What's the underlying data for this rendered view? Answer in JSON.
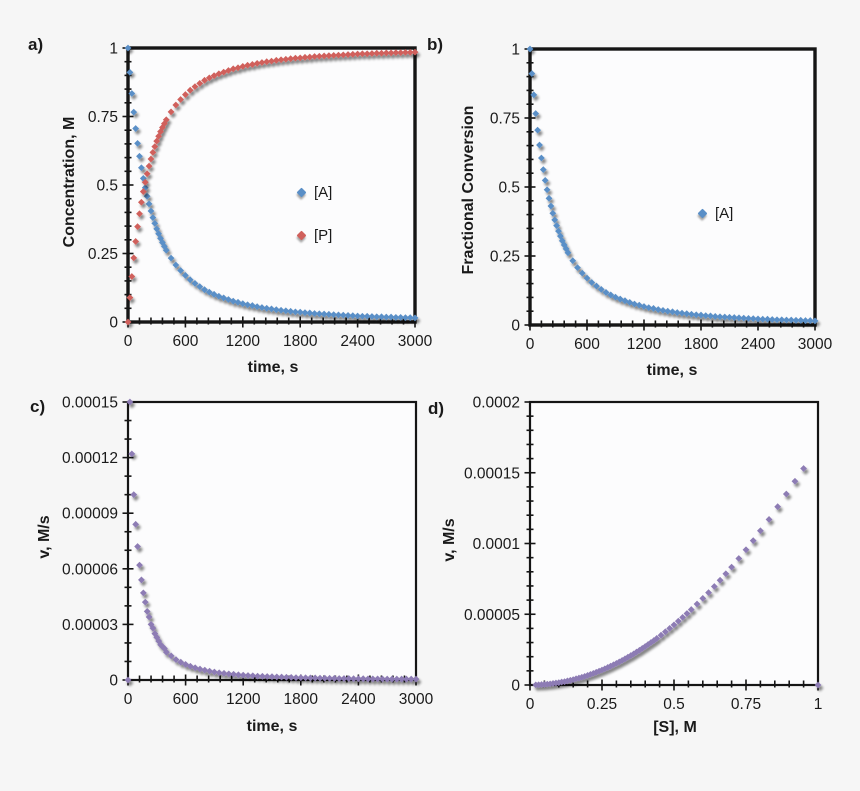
{
  "figure": {
    "bg": "#f6f6f6",
    "plot_bg": "#fcfcfd",
    "border_color": "#151515",
    "text_color": "#1a1a1a"
  },
  "chart_data": [
    {
      "panel": "a",
      "letter": "a)",
      "type": "scatter",
      "xlabel": "time, s",
      "ylabel": "Concentration, M",
      "xlim": [
        0,
        3000
      ],
      "ylim": [
        0,
        1
      ],
      "xticks": [
        0,
        600,
        1200,
        1800,
        2400,
        3000
      ],
      "xtick_labels": [
        "0",
        "600",
        "1200",
        "1800",
        "2400",
        "3000"
      ],
      "yticks": [
        0,
        0.25,
        0.5,
        0.75,
        1
      ],
      "ytick_labels": [
        "0",
        "0.25",
        "0.5",
        "0.75",
        "1"
      ],
      "x_minor_step": 120,
      "y_minor_step": 0.05,
      "grid": false,
      "legend_position": "inside-center-right",
      "border_width": 3.4,
      "series": [
        {
          "name": "[A]",
          "color": "#5a8fc7",
          "marker": "diamond",
          "x": [
            0,
            20,
            40,
            60,
            80,
            100,
            120,
            140,
            160,
            180,
            200,
            220,
            240,
            260,
            280,
            300,
            320,
            340,
            360,
            380,
            400,
            450,
            500,
            550,
            600,
            650,
            700,
            750,
            800,
            850,
            900,
            950,
            1000,
            1050,
            1100,
            1150,
            1200,
            1250,
            1300,
            1350,
            1400,
            1450,
            1500,
            1550,
            1600,
            1650,
            1700,
            1750,
            1800,
            1850,
            1900,
            1950,
            2000,
            2050,
            2100,
            2150,
            2200,
            2250,
            2300,
            2350,
            2400,
            2450,
            2500,
            2550,
            2600,
            2650,
            2700,
            2750,
            2800,
            2850,
            2900,
            2950,
            3000
          ],
          "y": [
            1,
            0.911,
            0.834,
            0.766,
            0.706,
            0.652,
            0.605,
            0.563,
            0.524,
            0.49,
            0.459,
            0.431,
            0.405,
            0.381,
            0.36,
            0.34,
            0.322,
            0.305,
            0.29,
            0.276,
            0.262,
            0.233,
            0.208,
            0.188,
            0.17,
            0.154,
            0.141,
            0.129,
            0.118,
            0.109,
            0.101,
            0.094,
            0.088,
            0.082,
            0.076,
            0.072,
            0.067,
            0.063,
            0.06,
            0.056,
            0.053,
            0.05,
            0.048,
            0.045,
            0.043,
            0.041,
            0.039,
            0.037,
            0.036,
            0.034,
            0.033,
            0.031,
            0.03,
            0.029,
            0.028,
            0.027,
            0.026,
            0.025,
            0.024,
            0.023,
            0.022,
            0.021,
            0.021,
            0.02,
            0.019,
            0.019,
            0.018,
            0.018,
            0.017,
            0.017,
            0.016,
            0.016,
            0.015
          ]
        },
        {
          "name": "[P]",
          "color": "#d0605c",
          "marker": "diamond",
          "x": [
            0,
            20,
            40,
            60,
            80,
            100,
            120,
            140,
            160,
            180,
            200,
            220,
            240,
            260,
            280,
            300,
            320,
            340,
            360,
            380,
            400,
            450,
            500,
            550,
            600,
            650,
            700,
            750,
            800,
            850,
            900,
            950,
            1000,
            1050,
            1100,
            1150,
            1200,
            1250,
            1300,
            1350,
            1400,
            1450,
            1500,
            1550,
            1600,
            1650,
            1700,
            1750,
            1800,
            1850,
            1900,
            1950,
            2000,
            2050,
            2100,
            2150,
            2200,
            2250,
            2300,
            2350,
            2400,
            2450,
            2500,
            2550,
            2600,
            2650,
            2700,
            2750,
            2800,
            2850,
            2900,
            2950,
            3000
          ],
          "y": [
            0,
            0.089,
            0.166,
            0.234,
            0.294,
            0.348,
            0.395,
            0.437,
            0.476,
            0.51,
            0.541,
            0.569,
            0.595,
            0.619,
            0.64,
            0.66,
            0.678,
            0.695,
            0.71,
            0.724,
            0.738,
            0.767,
            0.792,
            0.812,
            0.83,
            0.846,
            0.859,
            0.871,
            0.882,
            0.891,
            0.899,
            0.906,
            0.912,
            0.918,
            0.924,
            0.928,
            0.933,
            0.937,
            0.94,
            0.944,
            0.947,
            0.95,
            0.952,
            0.955,
            0.957,
            0.959,
            0.961,
            0.963,
            0.964,
            0.966,
            0.967,
            0.969,
            0.97,
            0.971,
            0.972,
            0.973,
            0.974,
            0.975,
            0.976,
            0.977,
            0.978,
            0.979,
            0.979,
            0.98,
            0.981,
            0.981,
            0.982,
            0.982,
            0.983,
            0.983,
            0.984,
            0.984,
            0.985
          ]
        }
      ]
    },
    {
      "panel": "b",
      "letter": "b)",
      "type": "scatter",
      "xlabel": "time, s",
      "ylabel": "Fractional Conversion",
      "xlim": [
        0,
        3000
      ],
      "ylim": [
        0,
        1
      ],
      "xticks": [
        0,
        600,
        1200,
        1800,
        2400,
        3000
      ],
      "xtick_labels": [
        "0",
        "600",
        "1200",
        "1800",
        "2400",
        "3000"
      ],
      "yticks": [
        0,
        0.25,
        0.5,
        0.75,
        1
      ],
      "ytick_labels": [
        "0",
        "0.25",
        "0.5",
        "0.75",
        "1"
      ],
      "x_minor_step": 120,
      "y_minor_step": 0.05,
      "grid": false,
      "legend_position": "inside-center-right",
      "border_width": 3.4,
      "series": [
        {
          "name": "[A]",
          "color": "#5a8fc7",
          "marker": "diamond",
          "x": [
            0,
            20,
            40,
            60,
            80,
            100,
            120,
            140,
            160,
            180,
            200,
            220,
            240,
            260,
            280,
            300,
            320,
            340,
            360,
            380,
            400,
            450,
            500,
            550,
            600,
            650,
            700,
            750,
            800,
            850,
            900,
            950,
            1000,
            1050,
            1100,
            1150,
            1200,
            1250,
            1300,
            1350,
            1400,
            1450,
            1500,
            1550,
            1600,
            1650,
            1700,
            1750,
            1800,
            1850,
            1900,
            1950,
            2000,
            2050,
            2100,
            2150,
            2200,
            2250,
            2300,
            2350,
            2400,
            2450,
            2500,
            2550,
            2600,
            2650,
            2700,
            2750,
            2800,
            2850,
            2900,
            2950,
            3000
          ],
          "y": [
            1,
            0.911,
            0.834,
            0.766,
            0.706,
            0.652,
            0.605,
            0.563,
            0.524,
            0.49,
            0.459,
            0.431,
            0.405,
            0.381,
            0.36,
            0.34,
            0.322,
            0.305,
            0.29,
            0.276,
            0.262,
            0.233,
            0.208,
            0.188,
            0.17,
            0.154,
            0.141,
            0.129,
            0.118,
            0.109,
            0.101,
            0.094,
            0.088,
            0.082,
            0.076,
            0.072,
            0.067,
            0.063,
            0.06,
            0.056,
            0.053,
            0.05,
            0.048,
            0.045,
            0.043,
            0.041,
            0.039,
            0.037,
            0.036,
            0.034,
            0.033,
            0.031,
            0.03,
            0.029,
            0.028,
            0.027,
            0.026,
            0.025,
            0.024,
            0.023,
            0.022,
            0.021,
            0.021,
            0.02,
            0.019,
            0.019,
            0.018,
            0.018,
            0.017,
            0.017,
            0.016,
            0.016,
            0.015
          ]
        }
      ]
    },
    {
      "panel": "c",
      "letter": "c)",
      "type": "scatter",
      "xlabel": "time, s",
      "ylabel": "v, M/s",
      "xlim": [
        0,
        3000
      ],
      "ylim": [
        0,
        0.00015
      ],
      "xticks": [
        0,
        600,
        1200,
        1800,
        2400,
        3000
      ],
      "xtick_labels": [
        "0",
        "600",
        "1200",
        "1800",
        "2400",
        "3000"
      ],
      "yticks": [
        0,
        3e-05,
        6e-05,
        9e-05,
        0.00012,
        0.00015
      ],
      "ytick_labels": [
        "0",
        "0.00003",
        "0.00006",
        "0.00009",
        "0.00012",
        "0.00015"
      ],
      "x_minor_step": 120,
      "y_minor_step": 1e-05,
      "grid": false,
      "legend_position": "none",
      "border_width": 2.2,
      "series": [
        {
          "name": "v",
          "color": "#8d7bb4",
          "marker": "diamond",
          "x": [
            0,
            20,
            40,
            60,
            80,
            100,
            120,
            140,
            160,
            180,
            200,
            220,
            240,
            260,
            280,
            300,
            320,
            340,
            360,
            380,
            400,
            450,
            500,
            550,
            600,
            650,
            700,
            750,
            800,
            850,
            900,
            950,
            1000,
            1050,
            1100,
            1150,
            1200,
            1250,
            1300,
            1350,
            1400,
            1450,
            1500,
            1550,
            1600,
            1650,
            1700,
            1750,
            1800,
            1850,
            1900,
            1950,
            2000,
            2050,
            2100,
            2150,
            2200,
            2250,
            2300,
            2350,
            2400,
            2450,
            2500,
            2550,
            2600,
            2650,
            2700,
            2750,
            2800,
            2850,
            2900,
            2950,
            3000
          ],
          "y": [
            0,
            0.00015,
            0.000122,
            0.0001,
            8.4e-05,
            7.2e-05,
            6.2e-05,
            5.4e-05,
            4.7e-05,
            4.2e-05,
            3.7e-05,
            3.4e-05,
            3e-05,
            2.8e-05,
            2.5e-05,
            2.3e-05,
            2.1e-05,
            1.9e-05,
            1.8e-05,
            1.7e-05,
            1.5e-05,
            1.3e-05,
            1.1e-05,
            9.6e-06,
            8.4e-06,
            7.4e-06,
            6.6e-06,
            5.9e-06,
            5.3e-06,
            4.8e-06,
            4.3e-06,
            3.9e-06,
            3.6e-06,
            3.3e-06,
            3.1e-06,
            2.8e-06,
            2.6e-06,
            2.4e-06,
            2.3e-06,
            2.1e-06,
            2e-06,
            1.9e-06,
            1.8e-06,
            1.7e-06,
            1.6e-06,
            1.5e-06,
            1.4e-06,
            1.3e-06,
            1.3e-06,
            1.2e-06,
            1.1e-06,
            1.1e-06,
            1e-06,
            1e-06,
            9e-07,
            9e-07,
            8e-07,
            8e-07,
            8e-07,
            7e-07,
            7e-07,
            7e-07,
            6e-07,
            6e-07,
            6e-07,
            6e-07,
            5e-07,
            5e-07,
            5e-07,
            5e-07,
            5e-07,
            5e-07,
            5e-07
          ]
        }
      ]
    },
    {
      "panel": "d",
      "letter": "d)",
      "type": "scatter",
      "xlabel": "[S], M",
      "ylabel": "v, M/s",
      "xlim": [
        0,
        1
      ],
      "ylim": [
        0,
        0.0002
      ],
      "xticks": [
        0,
        0.25,
        0.5,
        0.75,
        1
      ],
      "xtick_labels": [
        "0",
        "0.25",
        "0.5",
        "0.75",
        "1"
      ],
      "yticks": [
        0,
        5e-05,
        0.0001,
        0.00015,
        0.0002
      ],
      "ytick_labels": [
        "0",
        "0.00005",
        "0.0001",
        "0.00015",
        "0.0002"
      ],
      "x_minor_step": 0.05,
      "y_minor_step": 1e-05,
      "grid": false,
      "legend_position": "none",
      "border_width": 2.2,
      "series": [
        {
          "name": "v",
          "color": "#8d7bb4",
          "marker": "diamond",
          "x": [
            1,
            0.95,
            0.92,
            0.89,
            0.86,
            0.83,
            0.8,
            0.775,
            0.75,
            0.725,
            0.7,
            0.68,
            0.66,
            0.64,
            0.62,
            0.6,
            0.58,
            0.56,
            0.545,
            0.53,
            0.515,
            0.5,
            0.485,
            0.47,
            0.455,
            0.44,
            0.43,
            0.42,
            0.41,
            0.4,
            0.39,
            0.38,
            0.37,
            0.36,
            0.35,
            0.34,
            0.33,
            0.32,
            0.31,
            0.3,
            0.29,
            0.28,
            0.27,
            0.26,
            0.25,
            0.24,
            0.23,
            0.22,
            0.21,
            0.2,
            0.19,
            0.18,
            0.17,
            0.16,
            0.15,
            0.14,
            0.13,
            0.12,
            0.11,
            0.1,
            0.09,
            0.08,
            0.07,
            0.06,
            0.05,
            0.04,
            0.03,
            0.02
          ],
          "y": [
            0,
            0.000153,
            0.000144,
            0.000135,
            0.000126,
            0.000117,
            0.000109,
            0.000102,
            9.56e-05,
            8.94e-05,
            8.33e-05,
            7.86e-05,
            7.4e-05,
            6.96e-05,
            6.53e-05,
            6.12e-05,
            5.72e-05,
            5.33e-05,
            5.05e-05,
            4.78e-05,
            4.51e-05,
            4.25e-05,
            4e-05,
            3.76e-05,
            3.52e-05,
            3.29e-05,
            3.14e-05,
            3e-05,
            2.86e-05,
            2.72e-05,
            2.59e-05,
            2.45e-05,
            2.33e-05,
            2.2e-05,
            2.08e-05,
            1.97e-05,
            1.85e-05,
            1.74e-05,
            1.63e-05,
            1.53e-05,
            1.43e-05,
            1.33e-05,
            1.24e-05,
            1.15e-05,
            1.06e-05,
            9.8e-06,
            9e-06,
            8.2e-06,
            7.5e-06,
            6.8e-06,
            6.1e-06,
            5.5e-06,
            4.9e-06,
            4.4e-06,
            3.8e-06,
            3.3e-06,
            2.9e-06,
            2.4e-06,
            2.1e-06,
            1.7e-06,
            1.4e-06,
            1.1e-06,
            8e-07,
            6e-07,
            4e-07,
            3e-07,
            2e-07,
            1e-07
          ]
        }
      ]
    }
  ]
}
